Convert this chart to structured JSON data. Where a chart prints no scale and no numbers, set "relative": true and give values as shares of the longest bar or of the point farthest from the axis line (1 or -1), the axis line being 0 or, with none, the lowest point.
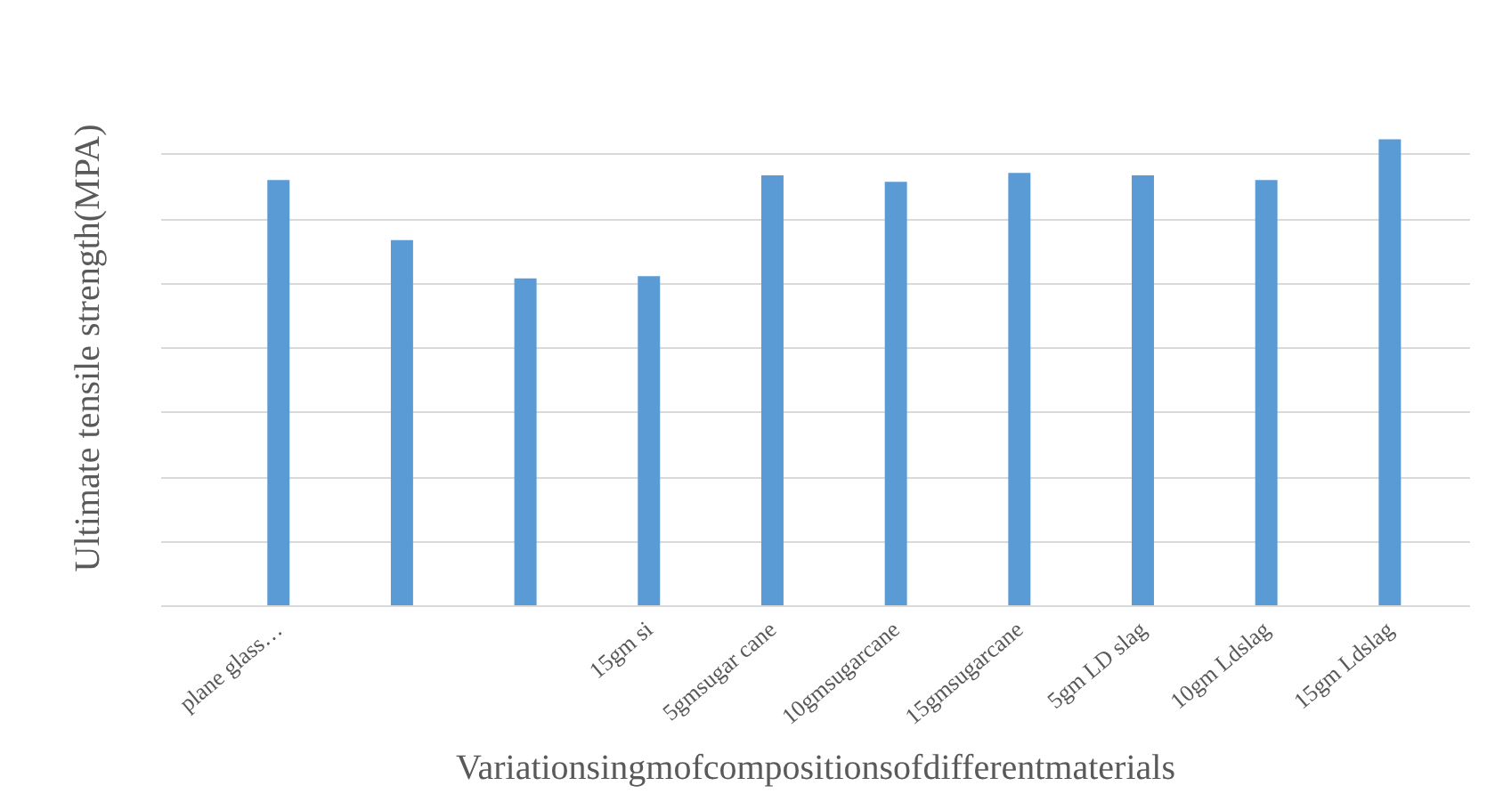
{
  "chart_data": {
    "type": "bar",
    "relative": true,
    "grid": "y",
    "color": "#5b9bd5",
    "xlabel": "Variationsingmofcompositionsofdifferentmaterials",
    "ylabel": "Ultimate tensile strength(MPA)",
    "categories": [
      "plane glass…",
      null,
      null,
      "15gm si",
      "5gmsugar cane",
      "10gmsugarcane",
      "15gmsugarcane",
      "5gm LD slag",
      "10gm Ldslag",
      "15gm Ldslag"
    ],
    "values": [
      0.913,
      0.784,
      0.702,
      0.707,
      0.923,
      0.909,
      0.928,
      0.923,
      0.913,
      1.0
    ]
  }
}
